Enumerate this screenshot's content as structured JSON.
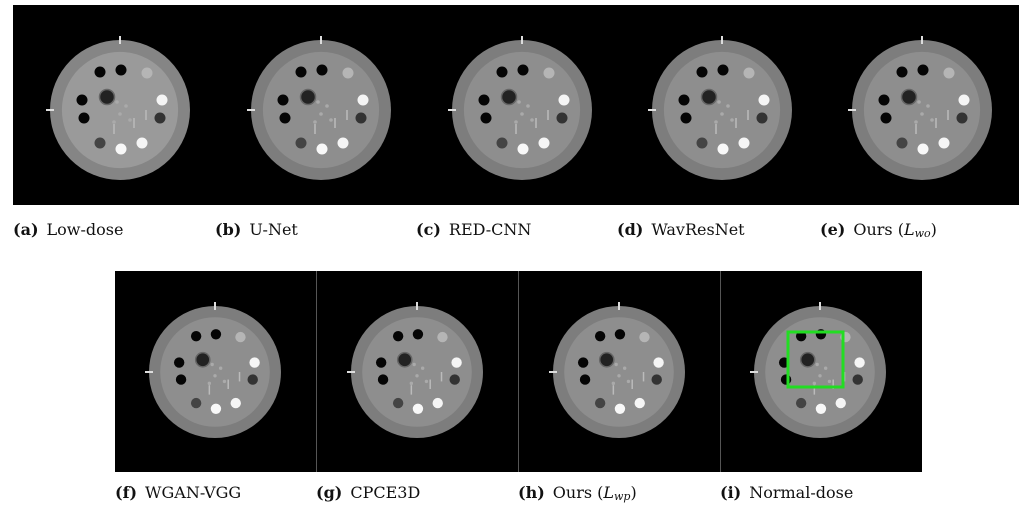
{
  "figure": {
    "panels": [
      {
        "label": "(a)",
        "name": "Low-dose"
      },
      {
        "label": "(b)",
        "name": "U-Net"
      },
      {
        "label": "(c)",
        "name": "RED-CNN"
      },
      {
        "label": "(d)",
        "name": "WavResNet"
      },
      {
        "label": "(e)",
        "name": "Ours (",
        "math": "L",
        "sub": "wo",
        "suffix": ")"
      },
      {
        "label": "(f)",
        "name": "WGAN-VGG"
      },
      {
        "label": "(g)",
        "name": "CPCE3D"
      },
      {
        "label": "(h)",
        "name": "Ours (",
        "math": "L",
        "sub": "wp",
        "suffix": ")"
      },
      {
        "label": "(i)",
        "name": "Normal-dose"
      }
    ]
  }
}
